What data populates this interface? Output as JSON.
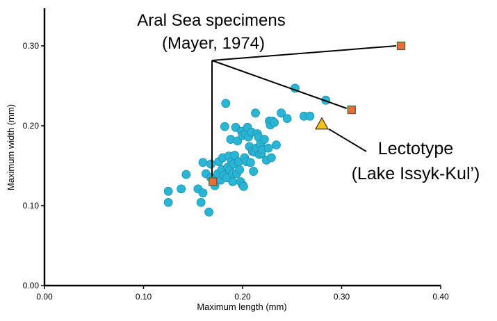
{
  "chart_data": {
    "type": "scatter",
    "xlabel": "Maximum length (mm)",
    "ylabel": "Maximum width (mm)",
    "xlim": [
      0,
      0.4
    ],
    "ylim": [
      0,
      0.35
    ],
    "x_ticks": [
      "0.00",
      "0.10",
      "0.20",
      "0.30",
      "0.40"
    ],
    "x_tick_values": [
      0,
      0.1,
      0.2,
      0.3,
      0.4
    ],
    "y_ticks": [
      "0.00",
      "0.10",
      "0.20",
      "0.30"
    ],
    "y_tick_values": [
      0,
      0.1,
      0.2,
      0.3
    ],
    "grid": false,
    "series": [
      {
        "marker": "circle",
        "color": "#29b6d6",
        "points": [
          [
            0.125,
            0.118
          ],
          [
            0.125,
            0.104
          ],
          [
            0.138,
            0.121
          ],
          [
            0.143,
            0.139
          ],
          [
            0.155,
            0.121
          ],
          [
            0.158,
            0.104
          ],
          [
            0.16,
            0.116
          ],
          [
            0.16,
            0.154
          ],
          [
            0.163,
            0.14
          ],
          [
            0.166,
            0.092
          ],
          [
            0.168,
            0.152
          ],
          [
            0.168,
            0.135
          ],
          [
            0.171,
            0.128
          ],
          [
            0.172,
            0.125
          ],
          [
            0.173,
            0.135
          ],
          [
            0.175,
            0.14
          ],
          [
            0.176,
            0.155
          ],
          [
            0.178,
            0.132
          ],
          [
            0.179,
            0.145
          ],
          [
            0.18,
            0.16
          ],
          [
            0.181,
            0.138
          ],
          [
            0.182,
            0.199
          ],
          [
            0.183,
            0.228
          ],
          [
            0.184,
            0.135
          ],
          [
            0.185,
            0.148
          ],
          [
            0.186,
            0.162
          ],
          [
            0.187,
            0.145
          ],
          [
            0.188,
            0.183
          ],
          [
            0.189,
            0.155
          ],
          [
            0.19,
            0.13
          ],
          [
            0.19,
            0.14
          ],
          [
            0.191,
            0.152
          ],
          [
            0.192,
            0.163
          ],
          [
            0.193,
            0.198
          ],
          [
            0.194,
            0.14
          ],
          [
            0.195,
            0.181
          ],
          [
            0.196,
            0.155
          ],
          [
            0.197,
            0.145
          ],
          [
            0.198,
            0.13
          ],
          [
            0.199,
            0.193
          ],
          [
            0.2,
            0.126
          ],
          [
            0.2,
            0.188
          ],
          [
            0.201,
            0.124
          ],
          [
            0.202,
            0.16
          ],
          [
            0.203,
            0.19
          ],
          [
            0.204,
            0.155
          ],
          [
            0.205,
            0.198
          ],
          [
            0.206,
            0.186
          ],
          [
            0.207,
            0.174
          ],
          [
            0.208,
            0.154
          ],
          [
            0.209,
            0.192
          ],
          [
            0.21,
            0.168
          ],
          [
            0.211,
            0.143
          ],
          [
            0.212,
            0.167
          ],
          [
            0.213,
            0.216
          ],
          [
            0.214,
            0.172
          ],
          [
            0.215,
            0.19
          ],
          [
            0.216,
            0.186
          ],
          [
            0.217,
            0.164
          ],
          [
            0.218,
            0.177
          ],
          [
            0.219,
            0.166
          ],
          [
            0.22,
            0.17
          ],
          [
            0.222,
            0.183
          ],
          [
            0.224,
            0.157
          ],
          [
            0.226,
            0.172
          ],
          [
            0.227,
            0.206
          ],
          [
            0.228,
            0.201
          ],
          [
            0.229,
            0.16
          ],
          [
            0.23,
            0.206
          ],
          [
            0.232,
            0.204
          ],
          [
            0.234,
            0.176
          ],
          [
            0.239,
            0.216
          ],
          [
            0.245,
            0.209
          ],
          [
            0.253,
            0.247
          ],
          [
            0.262,
            0.212
          ],
          [
            0.268,
            0.212
          ],
          [
            0.284,
            0.232
          ]
        ]
      },
      {
        "marker": "square",
        "color": "#f26a36",
        "points": [
          [
            0.17,
            0.13
          ],
          [
            0.31,
            0.22
          ],
          [
            0.36,
            0.3
          ]
        ]
      },
      {
        "marker": "triangle",
        "color": "#f7c11e",
        "points": [
          [
            0.28,
            0.202
          ]
        ]
      }
    ],
    "annotations": [
      {
        "text_lines": [
          "Aral Sea specimens",
          "(Mayer, 1974)"
        ]
      },
      {
        "text_lines": [
          "Lectotype",
          "(Lake Issyk-Kul’)"
        ]
      }
    ]
  }
}
